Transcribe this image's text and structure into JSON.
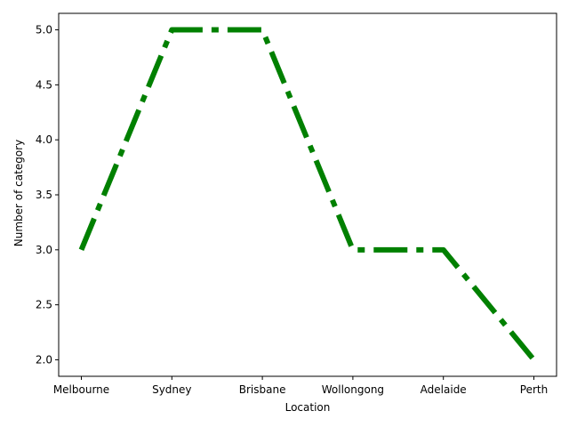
{
  "chart_data": {
    "type": "line",
    "title": "",
    "xlabel": "Location",
    "ylabel": "Number of category",
    "categories": [
      "Melbourne",
      "Sydney",
      "Brisbane",
      "Wollongong",
      "Adelaide",
      "Perth"
    ],
    "series": [
      {
        "values": [
          3,
          5,
          5,
          3,
          3,
          2
        ],
        "color": "#008000",
        "line_style": "dash-dot"
      }
    ],
    "ylim": [
      1.85,
      5.15
    ],
    "yticks": [
      "2.0",
      "2.5",
      "3.0",
      "3.5",
      "4.0",
      "4.5",
      "5.0"
    ],
    "grid": false,
    "legend": "none"
  }
}
